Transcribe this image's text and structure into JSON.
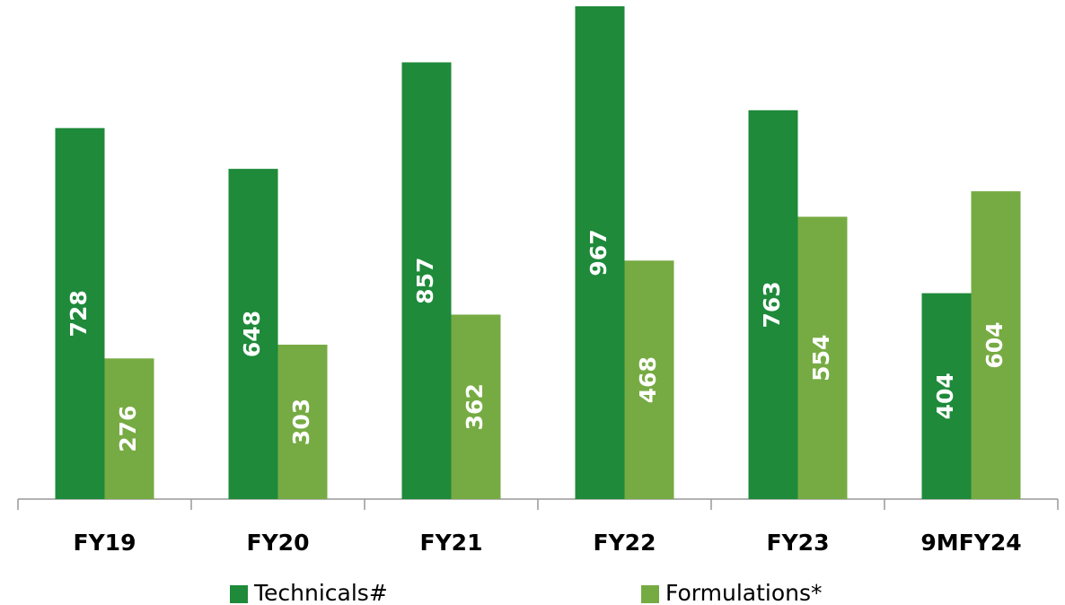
{
  "chart_data": {
    "type": "bar",
    "categories": [
      "FY19",
      "FY20",
      "FY21",
      "FY22",
      "FY23",
      "9MFY24"
    ],
    "series": [
      {
        "name": "Technicals#",
        "color": "#1e8a3a",
        "values": [
          728,
          648,
          857,
          967,
          763,
          404
        ]
      },
      {
        "name": "Formulations*",
        "color": "#76ab43",
        "values": [
          276,
          303,
          362,
          468,
          554,
          604
        ]
      }
    ],
    "ylim": [
      0,
      967
    ]
  }
}
